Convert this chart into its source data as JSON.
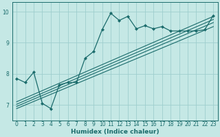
{
  "xlabel": "Humidex (Indice chaleur)",
  "bg_color": "#c5e8e5",
  "grid_color": "#9ecece",
  "line_color": "#1a6b6b",
  "xlim": [
    -0.5,
    23.5
  ],
  "ylim": [
    6.5,
    10.3
  ],
  "yticks": [
    7,
    8,
    9,
    10
  ],
  "xtick_labels": [
    "0",
    "1",
    "2",
    "3",
    "4",
    "5",
    "6",
    "7",
    "8",
    "9",
    "10",
    "11",
    "12",
    "13",
    "14",
    "15",
    "16",
    "17",
    "18",
    "19",
    "20",
    "21",
    "22",
    "23"
  ],
  "data_x": [
    0,
    1,
    2,
    3,
    4,
    5,
    6,
    7,
    8,
    9,
    10,
    11,
    12,
    13,
    14,
    15,
    16,
    17,
    18,
    19,
    20,
    21,
    22,
    23
  ],
  "data_y": [
    7.85,
    7.72,
    8.05,
    7.05,
    6.88,
    7.65,
    7.72,
    7.72,
    8.5,
    8.72,
    9.42,
    9.95,
    9.72,
    9.85,
    9.45,
    9.55,
    9.45,
    9.52,
    9.38,
    9.38,
    9.38,
    9.38,
    9.42,
    9.88
  ],
  "reg_lines": [
    {
      "x0": 0,
      "y0": 6.88,
      "x1": 23,
      "y1": 9.52
    },
    {
      "x0": 0,
      "y0": 6.95,
      "x1": 23,
      "y1": 9.65
    },
    {
      "x0": 0,
      "y0": 7.02,
      "x1": 23,
      "y1": 9.75
    },
    {
      "x0": 0,
      "y0": 7.1,
      "x1": 23,
      "y1": 9.85
    }
  ],
  "tick_fontsize": 5.5,
  "xlabel_fontsize": 6.5,
  "marker_size": 2.2,
  "linewidth": 0.9,
  "reg_linewidth": 0.8
}
